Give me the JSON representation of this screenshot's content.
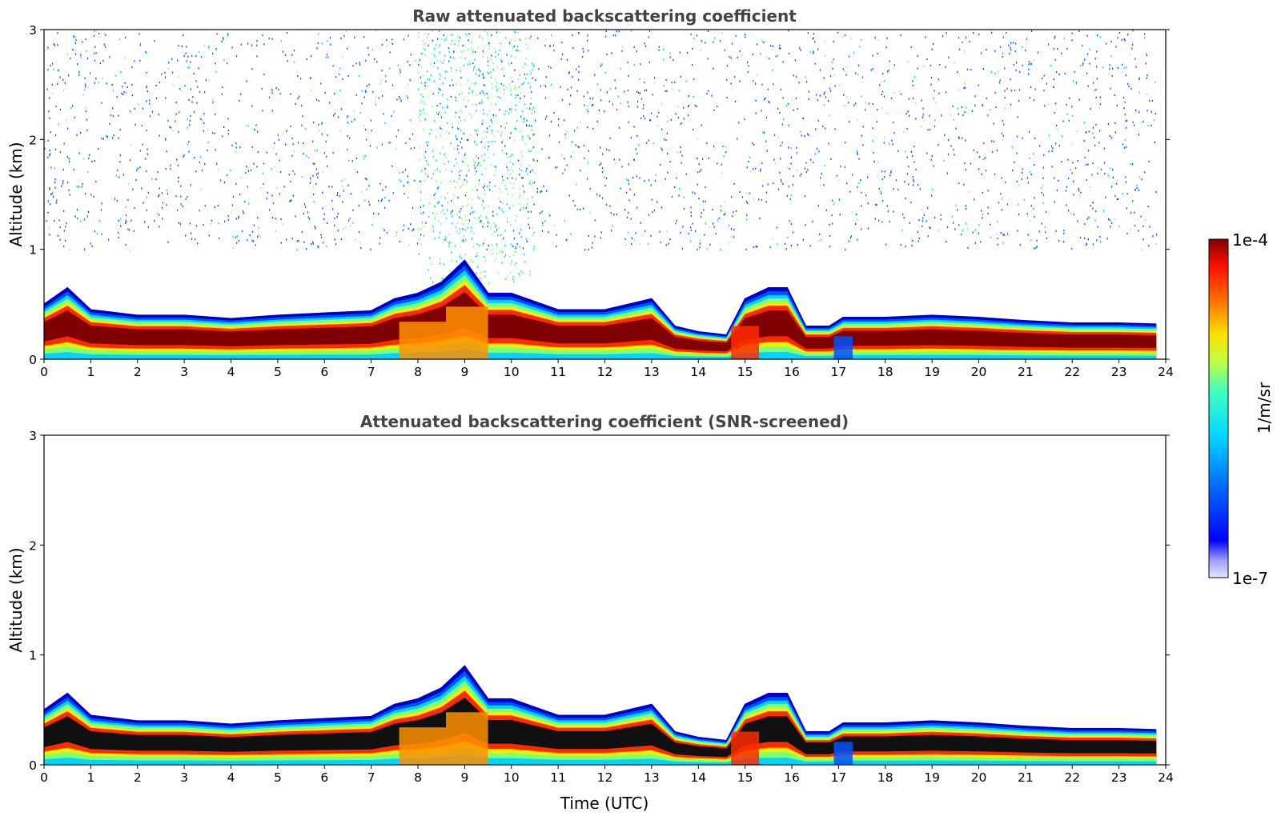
{
  "chart_data": [
    {
      "type": "heatmap",
      "title": "Raw attenuated backscattering coefficient",
      "xlabel": "",
      "ylabel": "Altitude (km)",
      "xlim": [
        0,
        24
      ],
      "ylim": [
        0,
        3
      ],
      "xticks": [
        "0",
        "1",
        "2",
        "3",
        "4",
        "5",
        "6",
        "7",
        "8",
        "9",
        "10",
        "11",
        "12",
        "13",
        "14",
        "15",
        "16",
        "17",
        "18",
        "19",
        "20",
        "21",
        "22",
        "23",
        "24"
      ],
      "yticks": [
        "0",
        "1",
        "2",
        "3"
      ],
      "grid": false,
      "boundary_layer_top_km": [
        {
          "x": 0.0,
          "y": 0.5
        },
        {
          "x": 0.5,
          "y": 0.65
        },
        {
          "x": 1.0,
          "y": 0.45
        },
        {
          "x": 2.0,
          "y": 0.4
        },
        {
          "x": 3.0,
          "y": 0.4
        },
        {
          "x": 4.0,
          "y": 0.37
        },
        {
          "x": 5.0,
          "y": 0.4
        },
        {
          "x": 6.0,
          "y": 0.42
        },
        {
          "x": 7.0,
          "y": 0.44
        },
        {
          "x": 7.5,
          "y": 0.55
        },
        {
          "x": 8.0,
          "y": 0.6
        },
        {
          "x": 8.5,
          "y": 0.7
        },
        {
          "x": 9.0,
          "y": 0.9
        },
        {
          "x": 9.5,
          "y": 0.6
        },
        {
          "x": 10.0,
          "y": 0.6
        },
        {
          "x": 11.0,
          "y": 0.45
        },
        {
          "x": 12.0,
          "y": 0.45
        },
        {
          "x": 13.0,
          "y": 0.55
        },
        {
          "x": 13.5,
          "y": 0.3
        },
        {
          "x": 14.0,
          "y": 0.25
        },
        {
          "x": 14.6,
          "y": 0.22
        },
        {
          "x": 15.0,
          "y": 0.55
        },
        {
          "x": 15.5,
          "y": 0.65
        },
        {
          "x": 15.9,
          "y": 0.65
        },
        {
          "x": 16.3,
          "y": 0.3
        },
        {
          "x": 16.8,
          "y": 0.3
        },
        {
          "x": 17.1,
          "y": 0.38
        },
        {
          "x": 18.0,
          "y": 0.38
        },
        {
          "x": 19.0,
          "y": 0.4
        },
        {
          "x": 20.0,
          "y": 0.38
        },
        {
          "x": 21.0,
          "y": 0.35
        },
        {
          "x": 22.0,
          "y": 0.33
        },
        {
          "x": 23.0,
          "y": 0.33
        },
        {
          "x": 23.8,
          "y": 0.32
        }
      ]
    },
    {
      "type": "heatmap",
      "title": "Attenuated backscattering coefficient (SNR-screened)",
      "xlabel": "Time (UTC)",
      "ylabel": "Altitude (km)",
      "xlim": [
        0,
        24
      ],
      "ylim": [
        0,
        3
      ],
      "xticks": [
        "0",
        "1",
        "2",
        "3",
        "4",
        "5",
        "6",
        "7",
        "8",
        "9",
        "10",
        "11",
        "12",
        "13",
        "14",
        "15",
        "16",
        "17",
        "18",
        "19",
        "20",
        "21",
        "22",
        "23",
        "24"
      ],
      "yticks": [
        "0",
        "1",
        "2",
        "3"
      ],
      "grid": false,
      "boundary_layer_top_km": [
        {
          "x": 0.0,
          "y": 0.5
        },
        {
          "x": 0.5,
          "y": 0.65
        },
        {
          "x": 1.0,
          "y": 0.45
        },
        {
          "x": 2.0,
          "y": 0.4
        },
        {
          "x": 3.0,
          "y": 0.4
        },
        {
          "x": 4.0,
          "y": 0.37
        },
        {
          "x": 5.0,
          "y": 0.4
        },
        {
          "x": 6.0,
          "y": 0.42
        },
        {
          "x": 7.0,
          "y": 0.44
        },
        {
          "x": 7.5,
          "y": 0.55
        },
        {
          "x": 8.0,
          "y": 0.6
        },
        {
          "x": 8.5,
          "y": 0.7
        },
        {
          "x": 9.0,
          "y": 0.9
        },
        {
          "x": 9.5,
          "y": 0.6
        },
        {
          "x": 10.0,
          "y": 0.6
        },
        {
          "x": 11.0,
          "y": 0.45
        },
        {
          "x": 12.0,
          "y": 0.45
        },
        {
          "x": 13.0,
          "y": 0.55
        },
        {
          "x": 13.5,
          "y": 0.3
        },
        {
          "x": 14.0,
          "y": 0.25
        },
        {
          "x": 14.6,
          "y": 0.22
        },
        {
          "x": 15.0,
          "y": 0.55
        },
        {
          "x": 15.5,
          "y": 0.65
        },
        {
          "x": 15.9,
          "y": 0.65
        },
        {
          "x": 16.3,
          "y": 0.3
        },
        {
          "x": 16.8,
          "y": 0.3
        },
        {
          "x": 17.1,
          "y": 0.38
        },
        {
          "x": 18.0,
          "y": 0.38
        },
        {
          "x": 19.0,
          "y": 0.4
        },
        {
          "x": 20.0,
          "y": 0.38
        },
        {
          "x": 21.0,
          "y": 0.35
        },
        {
          "x": 22.0,
          "y": 0.33
        },
        {
          "x": 23.0,
          "y": 0.33
        },
        {
          "x": 23.8,
          "y": 0.32
        }
      ]
    }
  ],
  "colorbar": {
    "max_label": "1e-4",
    "min_label": "1e-7",
    "unit_label": "1/m/sr",
    "scale": "log"
  },
  "colors": {
    "jet_dark_red": "#7f0000",
    "jet_red": "#ff2a00",
    "jet_orange": "#ff9000",
    "jet_yellow": "#f0f000",
    "jet_green": "#7dff7a",
    "jet_cyan": "#00d4ff",
    "jet_blue": "#0050ff",
    "jet_dark_blue": "#0000c8",
    "title_gray": "#444444"
  }
}
